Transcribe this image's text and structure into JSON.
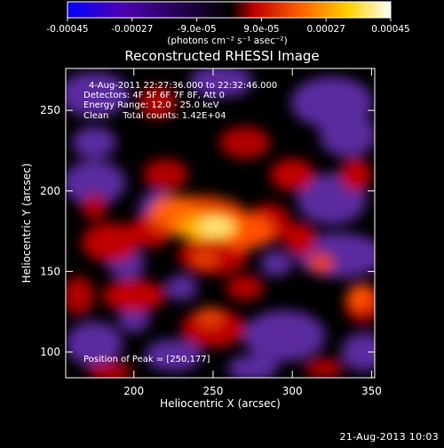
{
  "colorbar": {
    "tick_labels": [
      "-0.00045",
      "-0.00027",
      "-9.0e-05",
      "9.0e-05",
      "0.00027",
      "0.00045"
    ],
    "unit_label": "(photons cm⁻² s⁻¹ asec⁻²)",
    "range": [
      -0.00045,
      0.00045
    ],
    "colors": [
      "#0000ff",
      "#5000b0",
      "#000000",
      "#c00000",
      "#ff6000",
      "#ffd000",
      "#ffffff"
    ]
  },
  "chart_data": {
    "type": "heatmap",
    "title": "Reconstructed RHESSI Image",
    "xlabel": "Heliocentric X (arcsec)",
    "ylabel": "Heliocentric Y (arcsec)",
    "xlim": [
      157,
      352
    ],
    "ylim": [
      84,
      276
    ],
    "xticks": [
      200,
      250,
      300,
      350
    ],
    "yticks": [
      100,
      150,
      200,
      250
    ],
    "info_lines": [
      "4-Aug-2011 22:27:36.000 to 22:32:46.000",
      "Detectors: 4F 5F 6F 7F 8F, Att 0",
      "Energy Range: 12.0 - 25.0 keV",
      "Clean     Total counts: 1.42E+04"
    ],
    "peak_label": "Position of Peak = [250,177]",
    "peak": [
      250,
      177
    ]
  },
  "footer": {
    "timestamp": "21-Aug-2013 10:03"
  }
}
